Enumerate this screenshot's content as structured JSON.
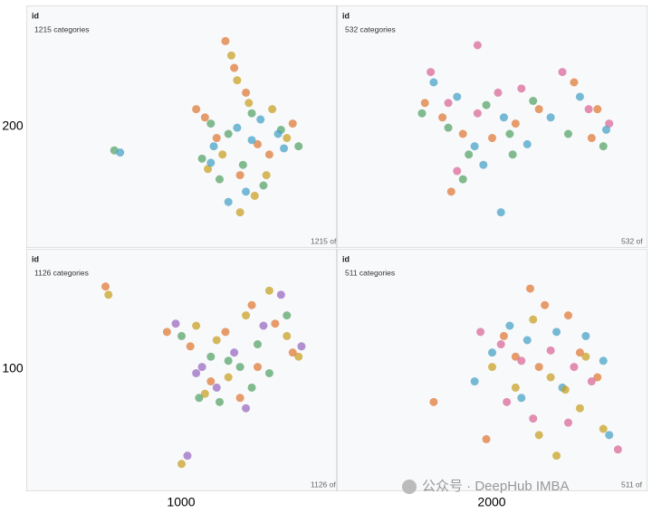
{
  "row_labels": [
    "200",
    "100"
  ],
  "col_labels": [
    "1000",
    "2000"
  ],
  "watermark": "公众号 · DeepHub IMBA",
  "chart_data": [
    {
      "type": "scatter",
      "title": "id",
      "subtitle": "1215 categories",
      "footer": "1215 of",
      "xlim": [
        0,
        100
      ],
      "ylim": [
        0,
        100
      ],
      "series": [
        {
          "color": "#e07b39",
          "x": [
            65,
            68,
            72,
            58,
            62,
            76,
            80,
            55,
            70,
            88
          ],
          "y": [
            95,
            82,
            70,
            58,
            48,
            45,
            40,
            62,
            30,
            55
          ]
        },
        {
          "color": "#5aa469",
          "x": [
            60,
            66,
            74,
            84,
            90,
            71,
            63,
            78,
            27,
            57
          ],
          "y": [
            55,
            50,
            60,
            52,
            44,
            35,
            28,
            25,
            42,
            38
          ]
        },
        {
          "color": "#c9a227",
          "x": [
            67,
            69,
            73,
            81,
            86,
            64,
            59,
            75,
            70,
            79
          ],
          "y": [
            88,
            76,
            65,
            62,
            48,
            40,
            33,
            20,
            12,
            30
          ]
        },
        {
          "color": "#4aa3c7",
          "x": [
            29,
            61,
            69,
            77,
            83,
            60,
            72,
            66,
            85,
            74
          ],
          "y": [
            41,
            44,
            53,
            57,
            50,
            36,
            22,
            17,
            43,
            47
          ]
        }
      ]
    },
    {
      "type": "scatter",
      "title": "id",
      "subtitle": "532 categories",
      "footer": "532 of",
      "xlim": [
        0,
        100
      ],
      "ylim": [
        0,
        100
      ],
      "series": [
        {
          "color": "#d96a9a",
          "x": [
            45,
            29,
            35,
            45,
            52,
            60,
            74,
            83,
            90,
            38
          ],
          "y": [
            93,
            80,
            65,
            60,
            70,
            72,
            80,
            62,
            55,
            32
          ]
        },
        {
          "color": "#e07b39",
          "x": [
            27,
            33,
            40,
            50,
            58,
            66,
            78,
            84,
            86,
            36
          ],
          "y": [
            65,
            58,
            50,
            48,
            55,
            62,
            75,
            48,
            62,
            22
          ]
        },
        {
          "color": "#4aa3c7",
          "x": [
            30,
            38,
            44,
            54,
            62,
            70,
            80,
            89,
            53,
            47
          ],
          "y": [
            75,
            68,
            44,
            58,
            45,
            58,
            68,
            52,
            12,
            35
          ]
        },
        {
          "color": "#5aa469",
          "x": [
            26,
            35,
            42,
            48,
            56,
            64,
            76,
            88,
            40,
            57
          ],
          "y": [
            60,
            53,
            40,
            64,
            50,
            66,
            50,
            44,
            28,
            40
          ]
        }
      ]
    },
    {
      "type": "scatter",
      "title": "id",
      "subtitle": "1126 categories",
      "footer": "1126 of",
      "xlim": [
        0,
        100
      ],
      "ylim": [
        0,
        100
      ],
      "series": [
        {
          "color": "#c9a227",
          "x": [
            25,
            55,
            62,
            72,
            80,
            86,
            90,
            66,
            58,
            50
          ],
          "y": [
            90,
            75,
            68,
            80,
            92,
            70,
            60,
            50,
            42,
            8
          ]
        },
        {
          "color": "#e07b39",
          "x": [
            24,
            45,
            53,
            65,
            74,
            82,
            88,
            60,
            70,
            76
          ],
          "y": [
            94,
            72,
            65,
            72,
            85,
            76,
            62,
            48,
            40,
            55
          ]
        },
        {
          "color": "#9b6bc2",
          "x": [
            48,
            57,
            68,
            78,
            84,
            91,
            62,
            72,
            55,
            52
          ],
          "y": [
            76,
            55,
            62,
            75,
            90,
            65,
            45,
            35,
            52,
            12
          ]
        },
        {
          "color": "#5aa469",
          "x": [
            50,
            60,
            70,
            76,
            86,
            66,
            80,
            56,
            63,
            74
          ],
          "y": [
            70,
            60,
            55,
            66,
            80,
            58,
            52,
            40,
            38,
            45
          ]
        }
      ]
    },
    {
      "type": "scatter",
      "title": "id",
      "subtitle": "511 categories",
      "footer": "511 of",
      "xlim": [
        0,
        100
      ],
      "ylim": [
        0,
        100
      ],
      "series": [
        {
          "color": "#e07b39",
          "x": [
            63,
            68,
            76,
            54,
            58,
            66,
            80,
            86,
            30,
            48
          ],
          "y": [
            93,
            85,
            80,
            70,
            60,
            55,
            62,
            50,
            38,
            20
          ]
        },
        {
          "color": "#4aa3c7",
          "x": [
            56,
            62,
            72,
            82,
            88,
            50,
            44,
            60,
            74,
            90
          ],
          "y": [
            75,
            68,
            72,
            70,
            58,
            62,
            48,
            40,
            45,
            22
          ]
        },
        {
          "color": "#d96a9a",
          "x": [
            53,
            60,
            70,
            78,
            84,
            46,
            55,
            64,
            76,
            93
          ],
          "y": [
            66,
            58,
            63,
            55,
            48,
            72,
            38,
            30,
            28,
            15
          ]
        },
        {
          "color": "#c9a227",
          "x": [
            64,
            70,
            75,
            82,
            50,
            58,
            66,
            72,
            80,
            88
          ],
          "y": [
            78,
            50,
            44,
            60,
            55,
            45,
            22,
            12,
            35,
            25
          ]
        }
      ]
    }
  ]
}
